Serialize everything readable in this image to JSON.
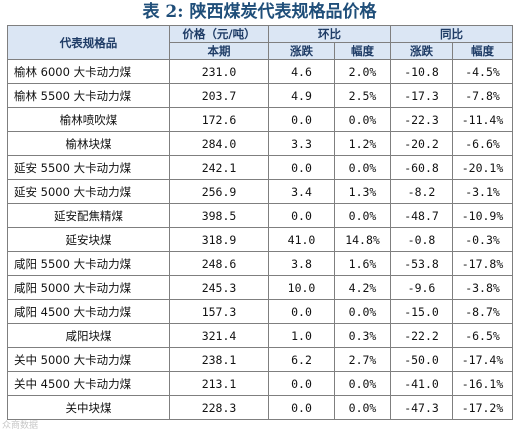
{
  "title": "表 2: 陕西煤炭代表规格品价格",
  "header": {
    "product": "代表规格品",
    "price": "价格（元/吨）",
    "current": "本期",
    "mom": "环比",
    "yoy": "同比",
    "change": "涨跌",
    "pct": "幅度"
  },
  "rows": [
    {
      "name": "榆林 6000 大卡动力煤",
      "price": "231.0",
      "mom_change": "4.6",
      "mom_pct": "2.0%",
      "yoy_change": "-10.8",
      "yoy_pct": "-4.5%"
    },
    {
      "name": "榆林 5500 大卡动力煤",
      "price": "203.7",
      "mom_change": "4.9",
      "mom_pct": "2.5%",
      "yoy_change": "-17.3",
      "yoy_pct": "-7.8%"
    },
    {
      "name": "榆林喷吹煤",
      "price": "172.6",
      "mom_change": "0.0",
      "mom_pct": "0.0%",
      "yoy_change": "-22.3",
      "yoy_pct": "-11.4%"
    },
    {
      "name": "榆林块煤",
      "price": "284.0",
      "mom_change": "3.3",
      "mom_pct": "1.2%",
      "yoy_change": "-20.2",
      "yoy_pct": "-6.6%"
    },
    {
      "name": "延安 5500 大卡动力煤",
      "price": "242.1",
      "mom_change": "0.0",
      "mom_pct": "0.0%",
      "yoy_change": "-60.8",
      "yoy_pct": "-20.1%"
    },
    {
      "name": "延安 5000 大卡动力煤",
      "price": "256.9",
      "mom_change": "3.4",
      "mom_pct": "1.3%",
      "yoy_change": "-8.2",
      "yoy_pct": "-3.1%"
    },
    {
      "name": "延安配焦精煤",
      "price": "398.5",
      "mom_change": "0.0",
      "mom_pct": "0.0%",
      "yoy_change": "-48.7",
      "yoy_pct": "-10.9%"
    },
    {
      "name": "延安块煤",
      "price": "318.9",
      "mom_change": "41.0",
      "mom_pct": "14.8%",
      "yoy_change": "-0.8",
      "yoy_pct": "-0.3%"
    },
    {
      "name": "咸阳 5500 大卡动力煤",
      "price": "248.6",
      "mom_change": "3.8",
      "mom_pct": "1.6%",
      "yoy_change": "-53.8",
      "yoy_pct": "-17.8%"
    },
    {
      "name": "咸阳 5000 大卡动力煤",
      "price": "245.3",
      "mom_change": "10.0",
      "mom_pct": "4.2%",
      "yoy_change": "-9.6",
      "yoy_pct": "-3.8%"
    },
    {
      "name": "咸阳 4500 大卡动力煤",
      "price": "157.3",
      "mom_change": "0.0",
      "mom_pct": "0.0%",
      "yoy_change": "-15.0",
      "yoy_pct": "-8.7%"
    },
    {
      "name": "咸阳块煤",
      "price": "321.4",
      "mom_change": "1.0",
      "mom_pct": "0.3%",
      "yoy_change": "-22.2",
      "yoy_pct": "-6.5%"
    },
    {
      "name": "关中 5000 大卡动力煤",
      "price": "238.1",
      "mom_change": "6.2",
      "mom_pct": "2.7%",
      "yoy_change": "-50.0",
      "yoy_pct": "-17.4%"
    },
    {
      "name": "关中 4500 大卡动力煤",
      "price": "213.1",
      "mom_change": "0.0",
      "mom_pct": "0.0%",
      "yoy_change": "-41.0",
      "yoy_pct": "-16.1%"
    },
    {
      "name": "关中块煤",
      "price": "228.3",
      "mom_change": "0.0",
      "mom_pct": "0.0%",
      "yoy_change": "-47.3",
      "yoy_pct": "-17.2%"
    }
  ],
  "watermark": "众商数据"
}
